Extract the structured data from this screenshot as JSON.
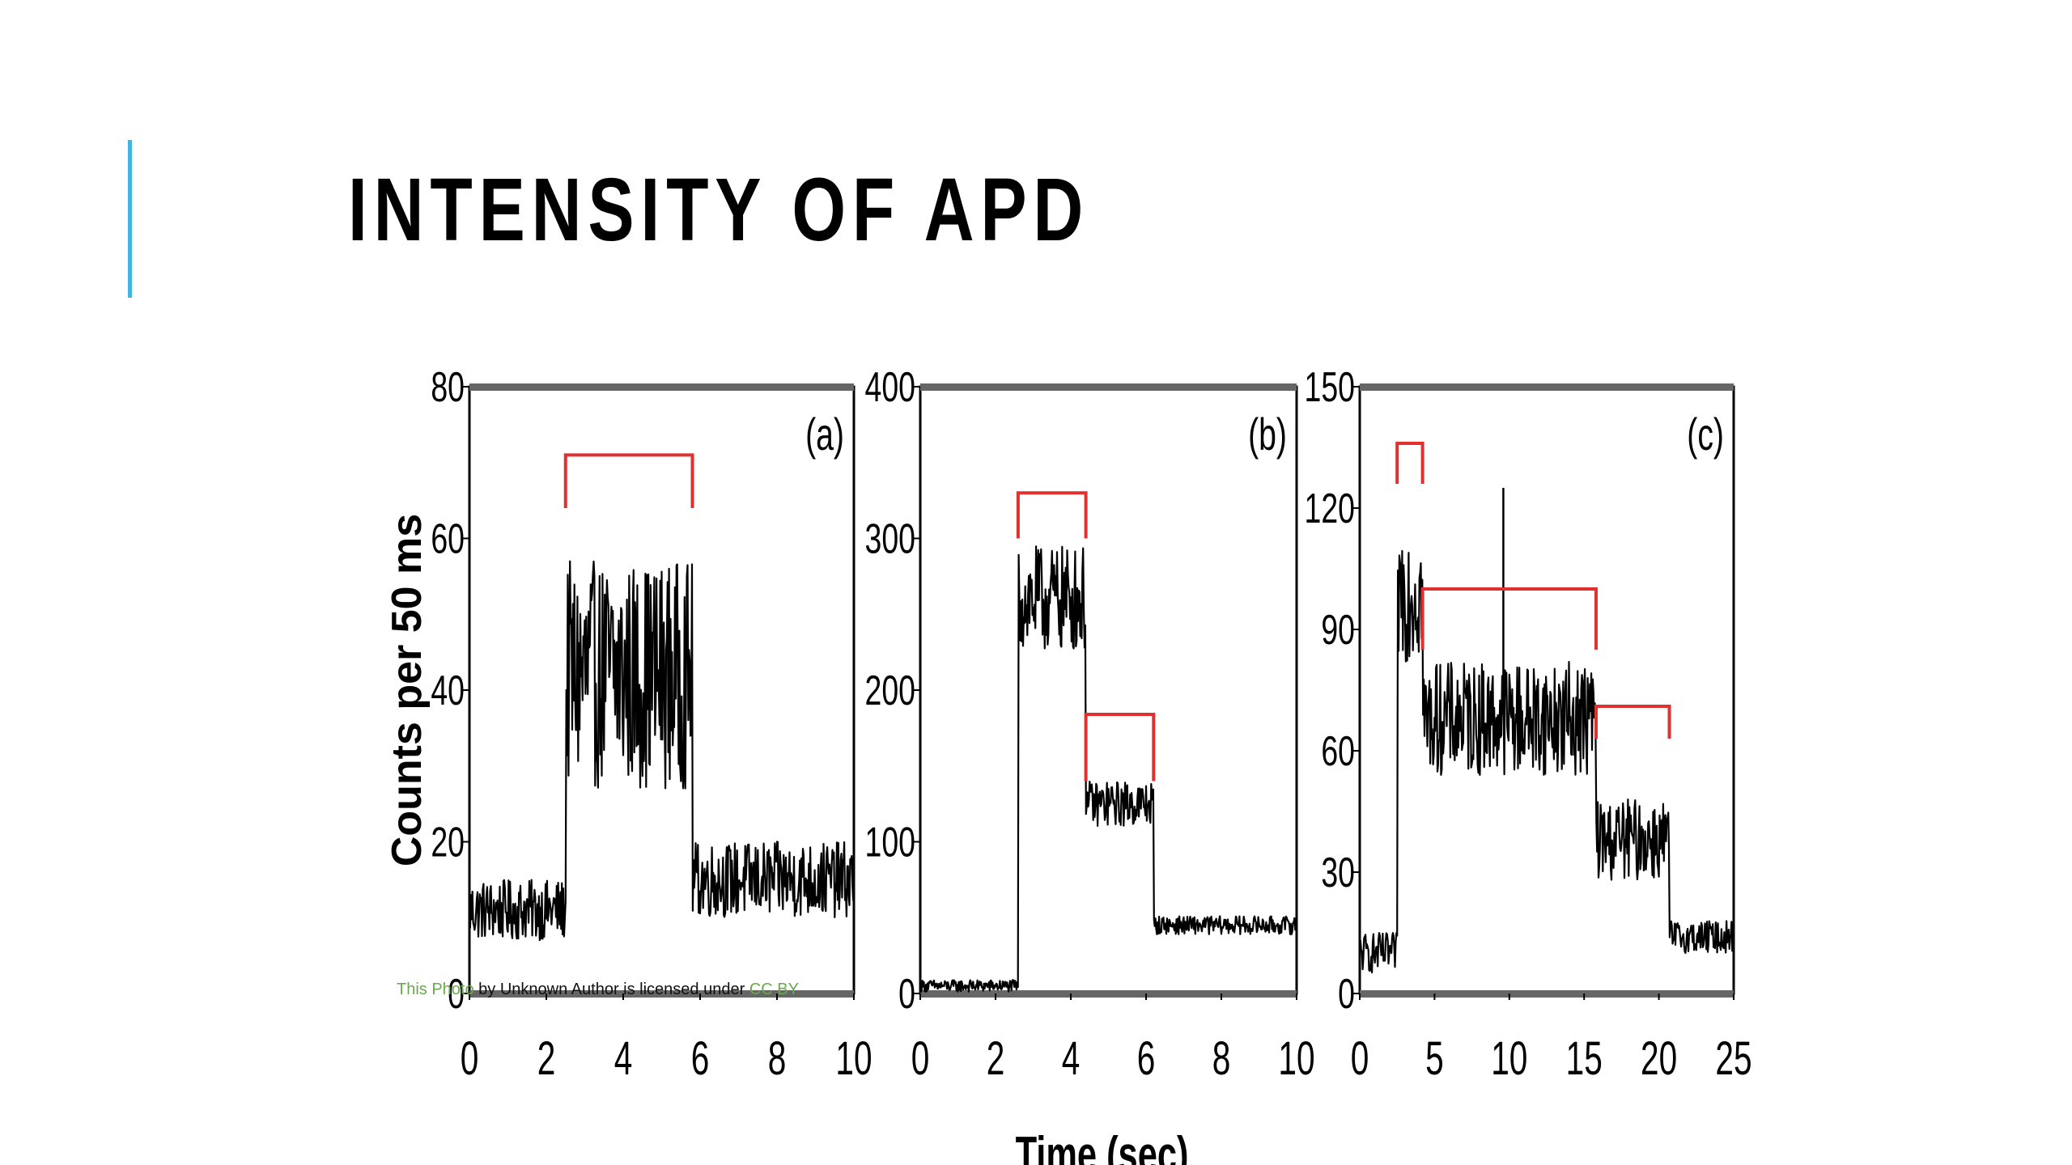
{
  "slide": {
    "title": "INTENSITY OF APD",
    "accent_color": "#41b6e6"
  },
  "attribution": {
    "link_text_1": "This Photo",
    "middle_text": " by Unknown Author is licensed under ",
    "link_text_2": "CC BY"
  },
  "chart_data": [
    {
      "type": "line",
      "panel_label": "(a)",
      "ylabel": "Counts per 50 ms",
      "xlabel": "",
      "xlim": [
        0,
        10
      ],
      "ylim": [
        0,
        80
      ],
      "x_ticks": [
        0,
        2,
        4,
        6,
        8,
        10
      ],
      "y_ticks": [
        0,
        20,
        40,
        60,
        80
      ],
      "series_color": "#000000",
      "segments": [
        {
          "x_start": 0,
          "x_end": 2.5,
          "level": 11,
          "noise": 4
        },
        {
          "x_start": 2.5,
          "x_end": 5.8,
          "level": 42,
          "noise": 15
        },
        {
          "x_start": 5.8,
          "x_end": 10,
          "level": 15,
          "noise": 5
        }
      ],
      "brackets": [
        {
          "x_start": 2.5,
          "x_end": 5.8,
          "y": 71,
          "drop_to": 64
        }
      ],
      "bracket_color": "#e03030"
    },
    {
      "type": "line",
      "panel_label": "(b)",
      "ylabel": "",
      "xlabel": "Time (sec)",
      "xlim": [
        0,
        10
      ],
      "ylim": [
        0,
        400
      ],
      "x_ticks": [
        0,
        2,
        4,
        6,
        8,
        10
      ],
      "y_ticks": [
        0,
        100,
        200,
        300,
        400
      ],
      "series_color": "#000000",
      "segments": [
        {
          "x_start": 0,
          "x_end": 2.6,
          "level": 5,
          "noise": 4
        },
        {
          "x_start": 2.6,
          "x_end": 4.4,
          "level": 260,
          "noise": 35
        },
        {
          "x_start": 4.4,
          "x_end": 6.2,
          "level": 125,
          "noise": 15
        },
        {
          "x_start": 6.2,
          "x_end": 10,
          "level": 45,
          "noise": 6
        }
      ],
      "brackets": [
        {
          "x_start": 2.6,
          "x_end": 4.4,
          "y": 330,
          "drop_to": 300
        },
        {
          "x_start": 4.4,
          "x_end": 6.2,
          "y": 184,
          "drop_to": 140
        }
      ],
      "bracket_color": "#e03030"
    },
    {
      "type": "line",
      "panel_label": "(c)",
      "ylabel": "",
      "xlabel": "",
      "xlim": [
        0,
        25
      ],
      "ylim": [
        0,
        150
      ],
      "x_ticks": [
        0,
        5,
        10,
        15,
        20,
        25
      ],
      "y_ticks": [
        0,
        30,
        60,
        90,
        120,
        150
      ],
      "series_color": "#000000",
      "segments": [
        {
          "x_start": 0,
          "x_end": 2.5,
          "level": 10,
          "noise": 5
        },
        {
          "x_start": 2.5,
          "x_end": 4.2,
          "level": 100,
          "noise": 18
        },
        {
          "x_start": 4.2,
          "x_end": 15.8,
          "level": 68,
          "noise": 14
        },
        {
          "x_start": 15.8,
          "x_end": 20.7,
          "level": 38,
          "noise": 10
        },
        {
          "x_start": 20.7,
          "x_end": 25,
          "level": 14,
          "noise": 4
        }
      ],
      "spikes": [
        {
          "x": 9.6,
          "y": 125
        }
      ],
      "brackets": [
        {
          "x_start": 2.5,
          "x_end": 4.2,
          "y": 136,
          "drop_to": 126
        },
        {
          "x_start": 4.2,
          "x_end": 15.8,
          "y": 100,
          "drop_to": 85
        },
        {
          "x_start": 15.8,
          "x_end": 20.7,
          "y": 71,
          "drop_to": 63
        }
      ],
      "bracket_color": "#e03030"
    }
  ]
}
